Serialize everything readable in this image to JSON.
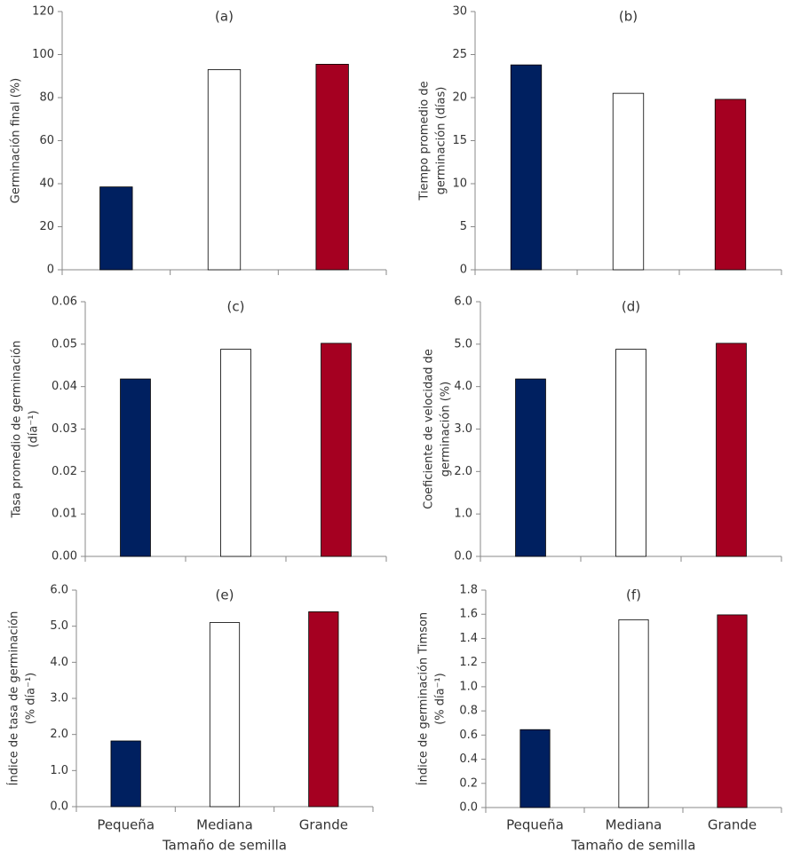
{
  "chart_data": [
    {
      "type": "bar",
      "label": "(a)",
      "ylabel": [
        "Germinación final (%)"
      ],
      "categories": [
        null,
        null,
        null
      ],
      "values": [
        38.5,
        93,
        95.5
      ],
      "colors": [
        "#002060",
        "#ffffff",
        "#a50021"
      ],
      "ylim": [
        0,
        120
      ],
      "yticks": [
        0,
        20,
        40,
        60,
        80,
        100,
        120
      ]
    },
    {
      "type": "bar",
      "label": "(b)",
      "ylabel": [
        "Tiempo promedio de",
        "germinación (días)"
      ],
      "categories": [
        null,
        null,
        null
      ],
      "values": [
        23.8,
        20.5,
        19.8
      ],
      "colors": [
        "#002060",
        "#ffffff",
        "#a50021"
      ],
      "ylim": [
        0,
        30
      ],
      "yticks": [
        0,
        5,
        10,
        15,
        20,
        25,
        30
      ]
    },
    {
      "type": "bar",
      "label": "(c)",
      "ylabel": [
        "Tasa promedio de germinación",
        "(día⁻¹)"
      ],
      "categories": [
        null,
        null,
        null
      ],
      "values": [
        0.0418,
        0.0488,
        0.0502
      ],
      "colors": [
        "#002060",
        "#ffffff",
        "#a50021"
      ],
      "ylim": [
        0,
        0.06
      ],
      "yticks": [
        {
          "value": 0,
          "label": "0.00"
        },
        {
          "value": 0.01,
          "label": "0.01"
        },
        {
          "value": 0.02,
          "label": "0.02"
        },
        {
          "value": 0.03,
          "label": "0.03"
        },
        {
          "value": 0.04,
          "label": "0.04"
        },
        {
          "value": 0.05,
          "label": "0.05"
        },
        {
          "value": 0.06,
          "label": "0.06"
        }
      ]
    },
    {
      "type": "bar",
      "label": "(d)",
      "ylabel": [
        "Coeficiente de velocidad de",
        "germinación (%)"
      ],
      "categories": [
        null,
        null,
        null
      ],
      "values": [
        4.18,
        4.88,
        5.02
      ],
      "colors": [
        "#002060",
        "#ffffff",
        "#a50021"
      ],
      "ylim": [
        0,
        6
      ],
      "yticks": [
        {
          "value": 0,
          "label": "0.0"
        },
        {
          "value": 1,
          "label": "1.0"
        },
        {
          "value": 2,
          "label": "2.0"
        },
        {
          "value": 3,
          "label": "3.0"
        },
        {
          "value": 4,
          "label": "4.0"
        },
        {
          "value": 5,
          "label": "5.0"
        },
        {
          "value": 6,
          "label": "6.0"
        }
      ]
    },
    {
      "type": "bar",
      "label": "(e)",
      "ylabel": [
        "Índice de tasa de germinación",
        "(% día⁻¹)"
      ],
      "xlabel": "Tamaño de semilla",
      "categories": [
        "Pequeña",
        "Mediana",
        "Grande"
      ],
      "values": [
        1.82,
        5.1,
        5.4
      ],
      "colors": [
        "#002060",
        "#ffffff",
        "#a50021"
      ],
      "ylim": [
        0,
        6
      ],
      "yticks": [
        {
          "value": 0,
          "label": "0.0"
        },
        {
          "value": 1,
          "label": "1.0"
        },
        {
          "value": 2,
          "label": "2.0"
        },
        {
          "value": 3,
          "label": "3.0"
        },
        {
          "value": 4,
          "label": "4.0"
        },
        {
          "value": 5,
          "label": "5.0"
        },
        {
          "value": 6,
          "label": "6.0"
        }
      ]
    },
    {
      "type": "bar",
      "label": "(f)",
      "ylabel": [
        "Índice de germinación Timson",
        "(% día⁻¹)"
      ],
      "xlabel": "Tamaño de semilla",
      "categories": [
        "Pequeña",
        "Mediana",
        "Grande"
      ],
      "values": [
        0.645,
        1.555,
        1.595
      ],
      "colors": [
        "#002060",
        "#ffffff",
        "#a50021"
      ],
      "ylim": [
        0,
        1.8
      ],
      "yticks": [
        {
          "value": 0,
          "label": "0.0"
        },
        {
          "value": 0.2,
          "label": "0.2"
        },
        {
          "value": 0.4,
          "label": "0.4"
        },
        {
          "value": 0.6,
          "label": "0.6"
        },
        {
          "value": 0.8,
          "label": "0.8"
        },
        {
          "value": 1,
          "label": "1.0"
        },
        {
          "value": 1.2,
          "label": "1.2"
        },
        {
          "value": 1.4,
          "label": "1.4"
        },
        {
          "value": 1.6,
          "label": "1.6"
        },
        {
          "value": 1.8,
          "label": "1.8"
        }
      ]
    }
  ]
}
